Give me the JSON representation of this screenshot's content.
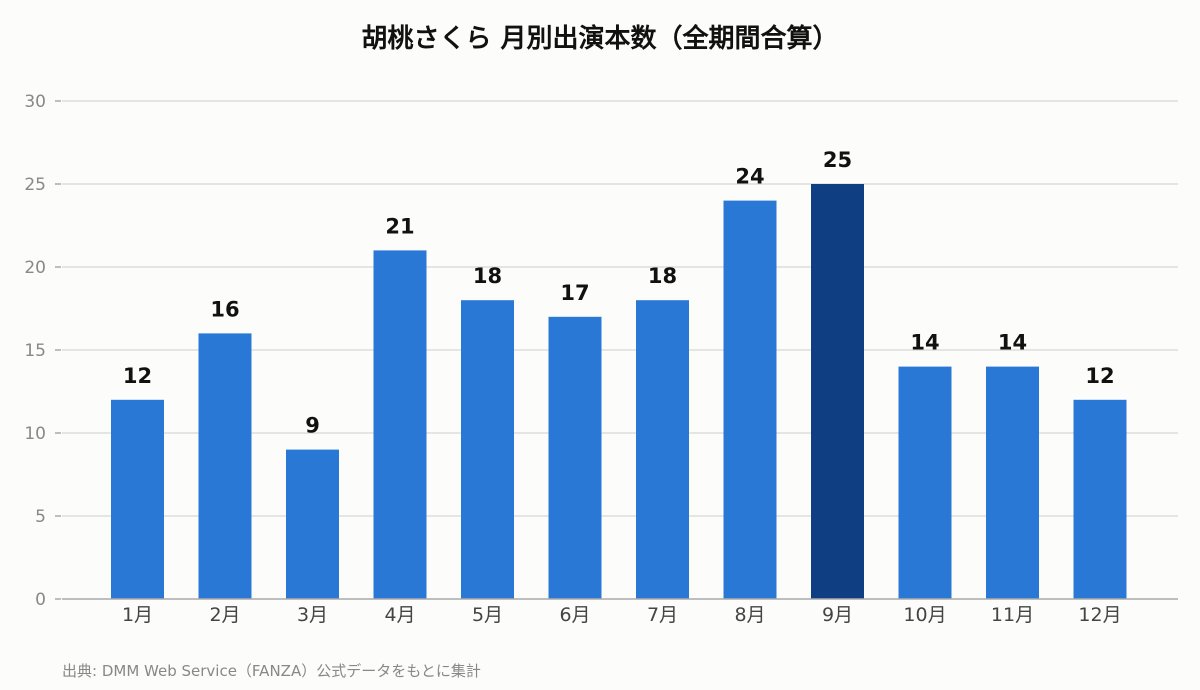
{
  "source": "出典: DMM Web Service（FANZA）公式データをもとに集計",
  "chart_data": {
    "type": "bar",
    "title": "胡桃さくら 月別出演本数（全期間合算）",
    "categories": [
      "1月",
      "2月",
      "3月",
      "4月",
      "5月",
      "6月",
      "7月",
      "8月",
      "9月",
      "10月",
      "11月",
      "12月"
    ],
    "values": [
      12,
      16,
      9,
      21,
      18,
      17,
      18,
      24,
      25,
      14,
      14,
      12
    ],
    "ylim": [
      0,
      30
    ],
    "yticks": [
      0,
      5,
      10,
      15,
      20,
      25,
      30
    ],
    "grid": true,
    "data_labels": true,
    "colors": {
      "bar": "#2a78d6",
      "highlight": "#0f3f82",
      "grid": "#dddddd",
      "axis": "#aaaaaa",
      "tick_text": "#888888",
      "category_text": "#444444",
      "label_text": "#111111"
    },
    "highlight_category": "9月"
  }
}
